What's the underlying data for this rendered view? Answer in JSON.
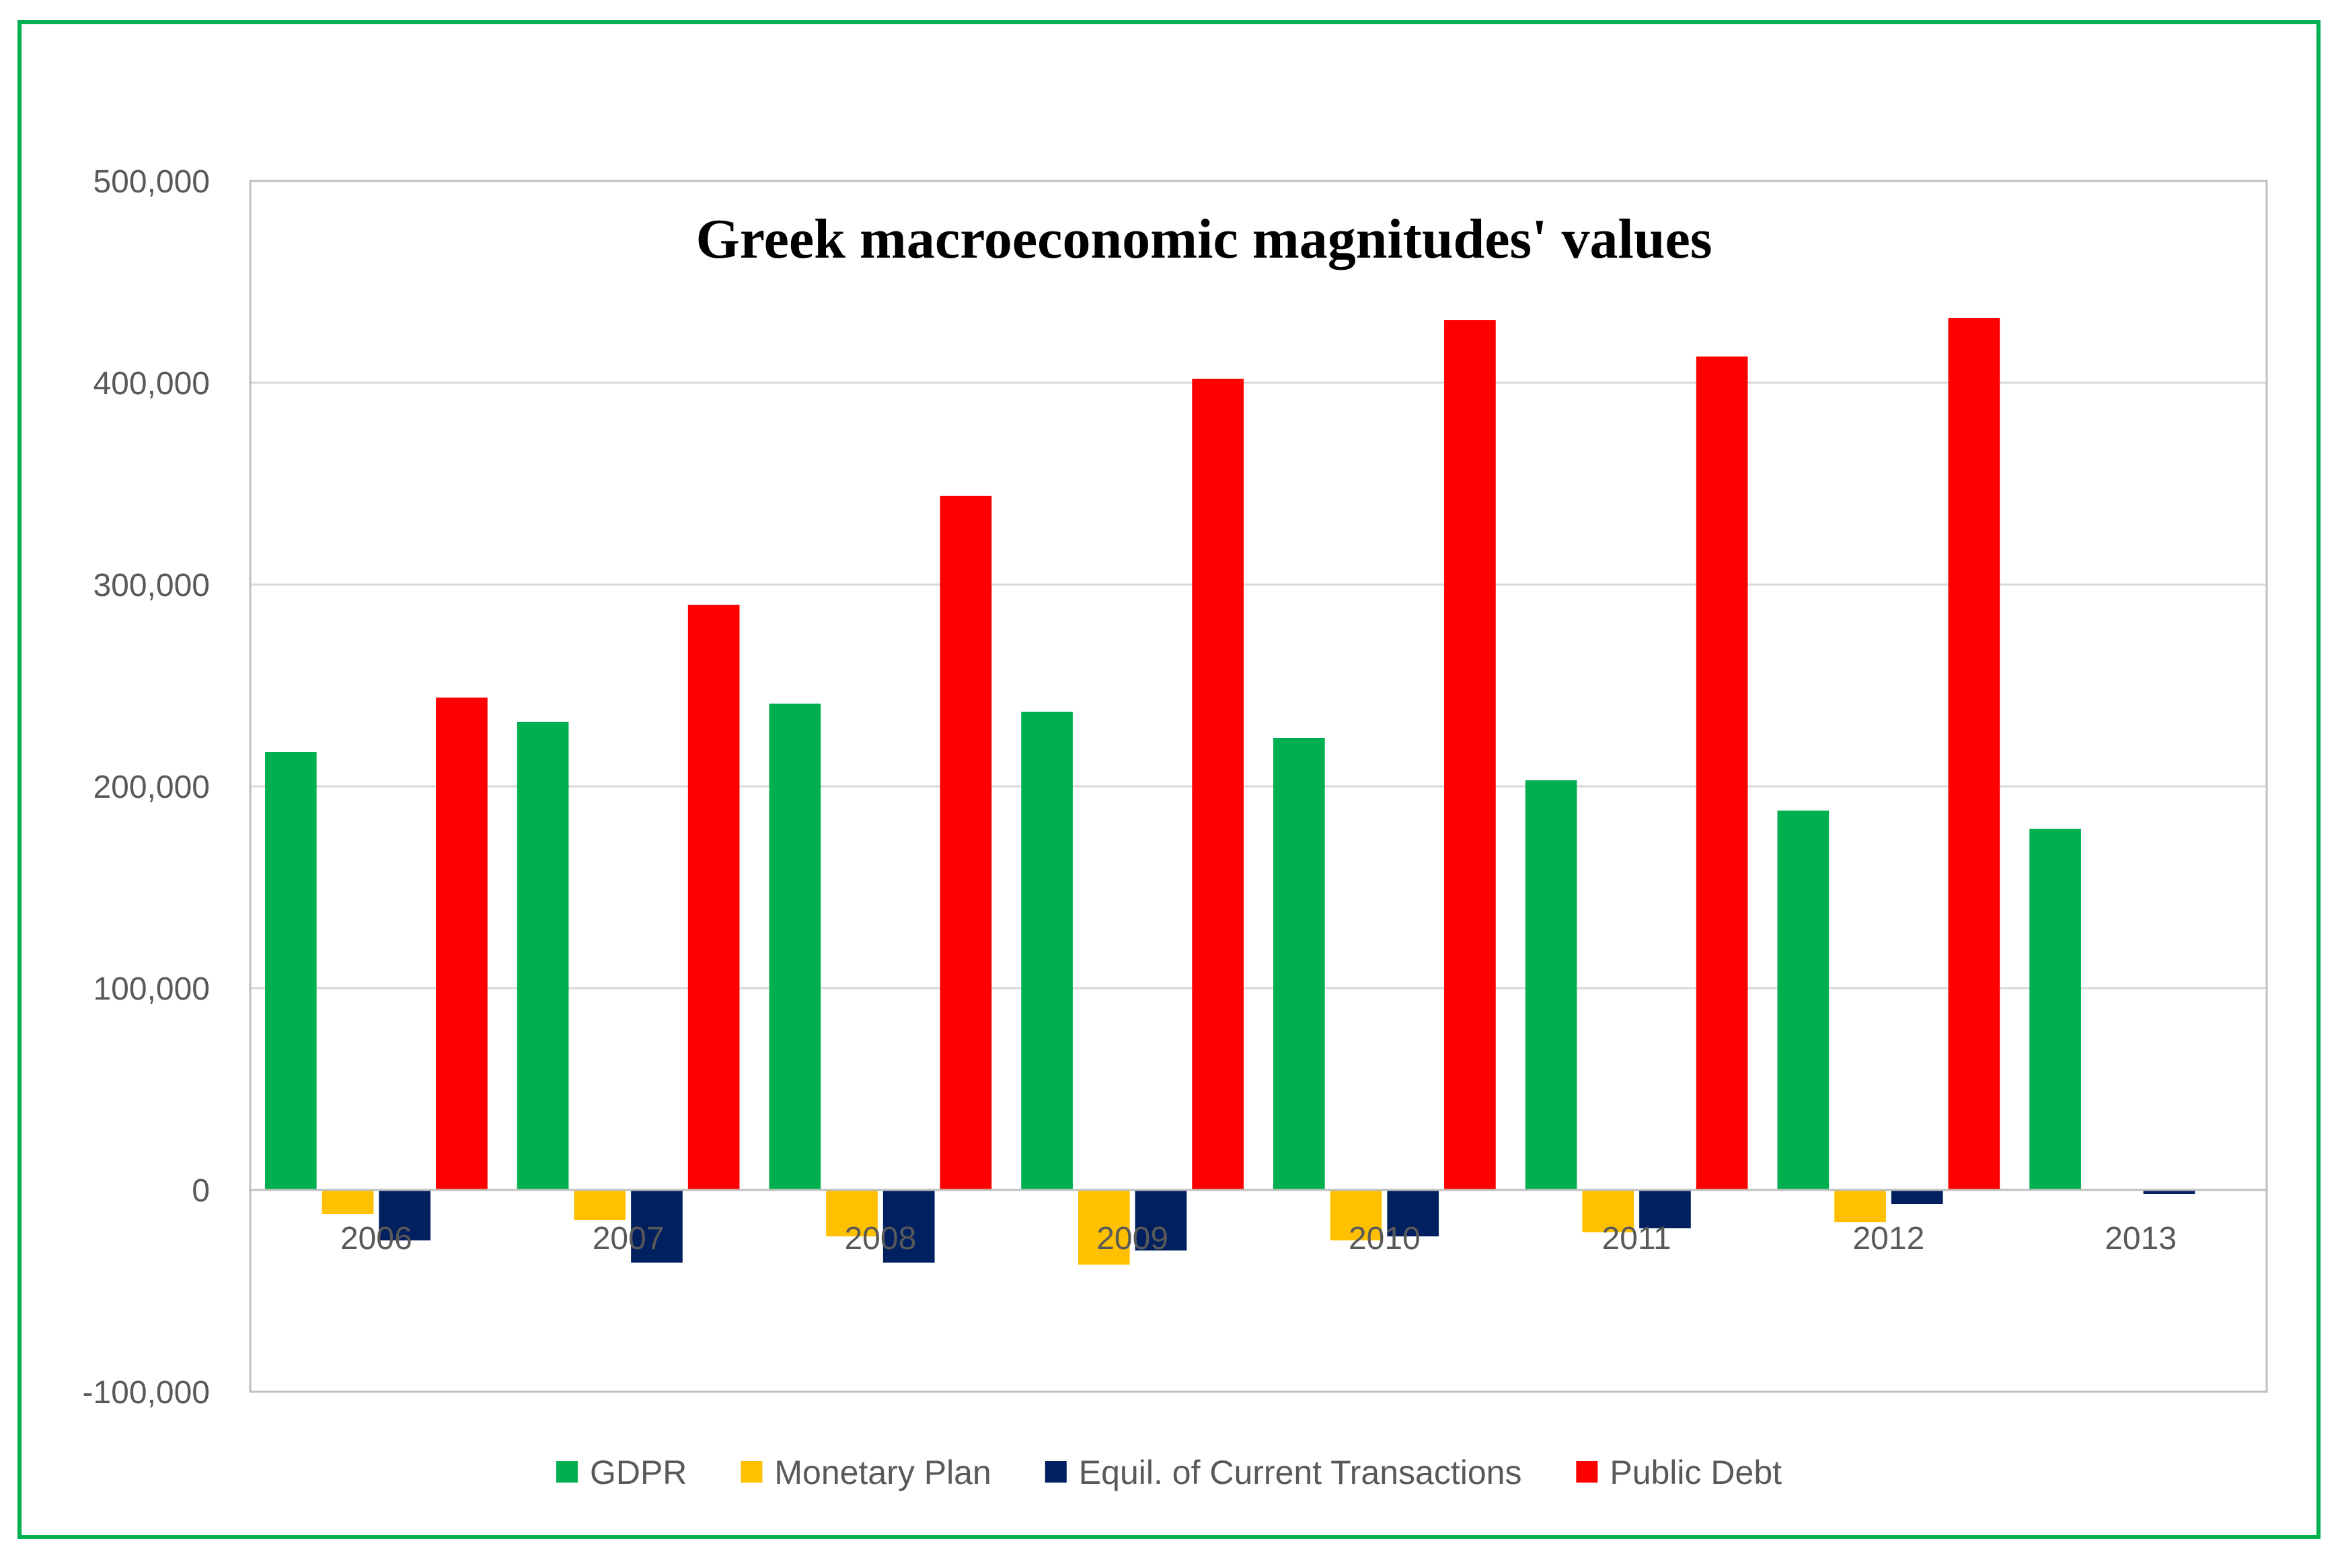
{
  "chart_data": {
    "type": "bar",
    "title": "Greek macroeconomic magnitudes' values",
    "xlabel": "",
    "ylabel": "",
    "ylim": [
      -100000,
      500000
    ],
    "yticks": [
      500000,
      400000,
      300000,
      200000,
      100000,
      0,
      -100000
    ],
    "ytick_labels": [
      "500,000",
      "400,000",
      "300,000",
      "200,000",
      "100,000",
      "0",
      "-100,000"
    ],
    "categories": [
      "2006",
      "2007",
      "2008",
      "2009",
      "2010",
      "2011",
      "2012",
      "2013"
    ],
    "series": [
      {
        "name": "GDPR",
        "color": "#00b050",
        "values": [
          217000,
          232000,
          241000,
          237000,
          224000,
          203000,
          188000,
          179000
        ]
      },
      {
        "name": "Monetary Plan",
        "color": "#ffc000",
        "values": [
          -12000,
          -15000,
          -23000,
          -37000,
          -25000,
          -21000,
          -16000,
          0
        ]
      },
      {
        "name": "Equil. of Current Transactions",
        "color": "#002060",
        "values": [
          -25000,
          -36000,
          -36000,
          -30000,
          -23000,
          -19000,
          -7000,
          -2000
        ]
      },
      {
        "name": "Public Debt",
        "color": "#ff0000",
        "values": [
          244000,
          290000,
          344000,
          402000,
          431000,
          413000,
          432000,
          null
        ]
      }
    ],
    "legend_position": "bottom",
    "grid": true
  }
}
